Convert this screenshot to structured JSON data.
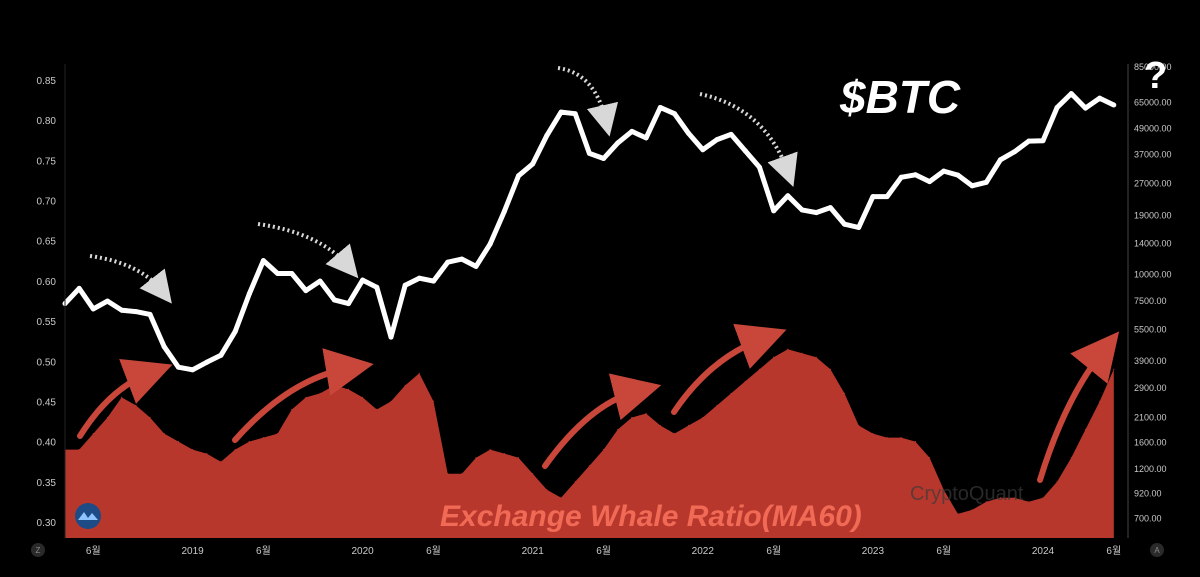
{
  "chart_data": {
    "type": "area",
    "series_btc_label": "$BTC",
    "metric_label": "Exchange Whale Ratio(MA60)",
    "question_mark": "?",
    "watermark": "CryptoQuant",
    "corner_left": "Z",
    "corner_right": "A",
    "left_axis": {
      "ticks": [
        "0.85",
        "0.80",
        "0.75",
        "0.70",
        "0.65",
        "0.60",
        "0.55",
        "0.50",
        "0.45",
        "0.40",
        "0.35",
        "0.30"
      ],
      "ylim": [
        0.28,
        0.87
      ]
    },
    "right_axis": {
      "scale": "log",
      "ticks": [
        "65000.00",
        "49000.00",
        "37000.00",
        "27000.00",
        "19000.00",
        "14000.00",
        "10000.00",
        "7500.00",
        "5500.00",
        "3900.00",
        "2900.00",
        "2100.00",
        "1600.00",
        "1200.00",
        "920.00",
        "700.00"
      ],
      "top_tick_partial": "85000.00"
    },
    "x_axis": {
      "range": [
        "2018-04",
        "2024-07"
      ],
      "ticks": [
        {
          "date": "2018-06",
          "label": "6월"
        },
        {
          "date": "2019-01",
          "label": "2019"
        },
        {
          "date": "2019-06",
          "label": "6월"
        },
        {
          "date": "2020-01",
          "label": "2020"
        },
        {
          "date": "2020-06",
          "label": "6월"
        },
        {
          "date": "2021-01",
          "label": "2021"
        },
        {
          "date": "2021-06",
          "label": "6월"
        },
        {
          "date": "2022-01",
          "label": "2022"
        },
        {
          "date": "2022-06",
          "label": "6월"
        },
        {
          "date": "2023-01",
          "label": "2023"
        },
        {
          "date": "2023-06",
          "label": "6월"
        },
        {
          "date": "2024-01",
          "label": "2024"
        },
        {
          "date": "2024-06",
          "label": "6월"
        }
      ]
    },
    "btc_price": [
      {
        "date": "2018-04",
        "v": 7200
      },
      {
        "date": "2018-05",
        "v": 8500
      },
      {
        "date": "2018-06",
        "v": 6800
      },
      {
        "date": "2018-07",
        "v": 7400
      },
      {
        "date": "2018-08",
        "v": 6700
      },
      {
        "date": "2018-09",
        "v": 6600
      },
      {
        "date": "2018-10",
        "v": 6400
      },
      {
        "date": "2018-11",
        "v": 4500
      },
      {
        "date": "2018-12",
        "v": 3600
      },
      {
        "date": "2019-01",
        "v": 3500
      },
      {
        "date": "2019-02",
        "v": 3800
      },
      {
        "date": "2019-03",
        "v": 4100
      },
      {
        "date": "2019-04",
        "v": 5300
      },
      {
        "date": "2019-05",
        "v": 8000
      },
      {
        "date": "2019-06",
        "v": 11500
      },
      {
        "date": "2019-07",
        "v": 10000
      },
      {
        "date": "2019-08",
        "v": 10000
      },
      {
        "date": "2019-09",
        "v": 8300
      },
      {
        "date": "2019-10",
        "v": 9200
      },
      {
        "date": "2019-11",
        "v": 7500
      },
      {
        "date": "2019-12",
        "v": 7200
      },
      {
        "date": "2020-01",
        "v": 9300
      },
      {
        "date": "2020-02",
        "v": 8600
      },
      {
        "date": "2020-03",
        "v": 5000
      },
      {
        "date": "2020-04",
        "v": 8800
      },
      {
        "date": "2020-05",
        "v": 9500
      },
      {
        "date": "2020-06",
        "v": 9200
      },
      {
        "date": "2020-07",
        "v": 11300
      },
      {
        "date": "2020-08",
        "v": 11700
      },
      {
        "date": "2020-09",
        "v": 10800
      },
      {
        "date": "2020-10",
        "v": 13800
      },
      {
        "date": "2020-11",
        "v": 19700
      },
      {
        "date": "2020-12",
        "v": 29000
      },
      {
        "date": "2021-01",
        "v": 33000
      },
      {
        "date": "2021-02",
        "v": 45000
      },
      {
        "date": "2021-03",
        "v": 58000
      },
      {
        "date": "2021-04",
        "v": 57000
      },
      {
        "date": "2021-05",
        "v": 37000
      },
      {
        "date": "2021-06",
        "v": 35000
      },
      {
        "date": "2021-07",
        "v": 41500
      },
      {
        "date": "2021-08",
        "v": 47000
      },
      {
        "date": "2021-09",
        "v": 43800
      },
      {
        "date": "2021-10",
        "v": 61000
      },
      {
        "date": "2021-11",
        "v": 57000
      },
      {
        "date": "2021-12",
        "v": 46000
      },
      {
        "date": "2022-01",
        "v": 38500
      },
      {
        "date": "2022-02",
        "v": 43000
      },
      {
        "date": "2022-03",
        "v": 45500
      },
      {
        "date": "2022-04",
        "v": 38000
      },
      {
        "date": "2022-05",
        "v": 31800
      },
      {
        "date": "2022-06",
        "v": 19800
      },
      {
        "date": "2022-07",
        "v": 23300
      },
      {
        "date": "2022-08",
        "v": 20000
      },
      {
        "date": "2022-09",
        "v": 19400
      },
      {
        "date": "2022-10",
        "v": 20500
      },
      {
        "date": "2022-11",
        "v": 17100
      },
      {
        "date": "2022-12",
        "v": 16500
      },
      {
        "date": "2023-01",
        "v": 23100
      },
      {
        "date": "2023-02",
        "v": 23100
      },
      {
        "date": "2023-03",
        "v": 28500
      },
      {
        "date": "2023-04",
        "v": 29300
      },
      {
        "date": "2023-05",
        "v": 27200
      },
      {
        "date": "2023-06",
        "v": 30500
      },
      {
        "date": "2023-07",
        "v": 29200
      },
      {
        "date": "2023-08",
        "v": 26000
      },
      {
        "date": "2023-09",
        "v": 27000
      },
      {
        "date": "2023-10",
        "v": 34500
      },
      {
        "date": "2023-11",
        "v": 37700
      },
      {
        "date": "2023-12",
        "v": 42300
      },
      {
        "date": "2024-01",
        "v": 42500
      },
      {
        "date": "2024-02",
        "v": 61000
      },
      {
        "date": "2024-03",
        "v": 71000
      },
      {
        "date": "2024-04",
        "v": 60600
      },
      {
        "date": "2024-05",
        "v": 67500
      },
      {
        "date": "2024-06",
        "v": 62700
      }
    ],
    "whale_ratio": [
      {
        "date": "2018-04",
        "v": 0.39
      },
      {
        "date": "2018-05",
        "v": 0.39
      },
      {
        "date": "2018-06",
        "v": 0.41
      },
      {
        "date": "2018-07",
        "v": 0.43
      },
      {
        "date": "2018-08",
        "v": 0.455
      },
      {
        "date": "2018-09",
        "v": 0.445
      },
      {
        "date": "2018-10",
        "v": 0.43
      },
      {
        "date": "2018-11",
        "v": 0.41
      },
      {
        "date": "2018-12",
        "v": 0.4
      },
      {
        "date": "2019-01",
        "v": 0.39
      },
      {
        "date": "2019-02",
        "v": 0.385
      },
      {
        "date": "2019-03",
        "v": 0.375
      },
      {
        "date": "2019-04",
        "v": 0.39
      },
      {
        "date": "2019-05",
        "v": 0.4
      },
      {
        "date": "2019-06",
        "v": 0.405
      },
      {
        "date": "2019-07",
        "v": 0.41
      },
      {
        "date": "2019-08",
        "v": 0.44
      },
      {
        "date": "2019-09",
        "v": 0.455
      },
      {
        "date": "2019-10",
        "v": 0.46
      },
      {
        "date": "2019-11",
        "v": 0.47
      },
      {
        "date": "2019-12",
        "v": 0.465
      },
      {
        "date": "2020-01",
        "v": 0.455
      },
      {
        "date": "2020-02",
        "v": 0.44
      },
      {
        "date": "2020-03",
        "v": 0.45
      },
      {
        "date": "2020-04",
        "v": 0.47
      },
      {
        "date": "2020-05",
        "v": 0.485
      },
      {
        "date": "2020-06",
        "v": 0.45
      },
      {
        "date": "2020-07",
        "v": 0.36
      },
      {
        "date": "2020-08",
        "v": 0.36
      },
      {
        "date": "2020-09",
        "v": 0.38
      },
      {
        "date": "2020-10",
        "v": 0.39
      },
      {
        "date": "2020-11",
        "v": 0.385
      },
      {
        "date": "2020-12",
        "v": 0.38
      },
      {
        "date": "2021-01",
        "v": 0.36
      },
      {
        "date": "2021-02",
        "v": 0.34
      },
      {
        "date": "2021-03",
        "v": 0.33
      },
      {
        "date": "2021-04",
        "v": 0.35
      },
      {
        "date": "2021-05",
        "v": 0.37
      },
      {
        "date": "2021-06",
        "v": 0.39
      },
      {
        "date": "2021-07",
        "v": 0.415
      },
      {
        "date": "2021-08",
        "v": 0.43
      },
      {
        "date": "2021-09",
        "v": 0.435
      },
      {
        "date": "2021-10",
        "v": 0.42
      },
      {
        "date": "2021-11",
        "v": 0.41
      },
      {
        "date": "2021-12",
        "v": 0.42
      },
      {
        "date": "2022-01",
        "v": 0.43
      },
      {
        "date": "2022-02",
        "v": 0.445
      },
      {
        "date": "2022-03",
        "v": 0.46
      },
      {
        "date": "2022-04",
        "v": 0.475
      },
      {
        "date": "2022-05",
        "v": 0.49
      },
      {
        "date": "2022-06",
        "v": 0.505
      },
      {
        "date": "2022-07",
        "v": 0.515
      },
      {
        "date": "2022-08",
        "v": 0.51
      },
      {
        "date": "2022-09",
        "v": 0.505
      },
      {
        "date": "2022-10",
        "v": 0.49
      },
      {
        "date": "2022-11",
        "v": 0.46
      },
      {
        "date": "2022-12",
        "v": 0.42
      },
      {
        "date": "2023-01",
        "v": 0.41
      },
      {
        "date": "2023-02",
        "v": 0.405
      },
      {
        "date": "2023-03",
        "v": 0.405
      },
      {
        "date": "2023-04",
        "v": 0.4
      },
      {
        "date": "2023-05",
        "v": 0.38
      },
      {
        "date": "2023-06",
        "v": 0.34
      },
      {
        "date": "2023-07",
        "v": 0.31
      },
      {
        "date": "2023-08",
        "v": 0.315
      },
      {
        "date": "2023-09",
        "v": 0.325
      },
      {
        "date": "2023-10",
        "v": 0.33
      },
      {
        "date": "2023-11",
        "v": 0.33
      },
      {
        "date": "2023-12",
        "v": 0.325
      },
      {
        "date": "2024-01",
        "v": 0.33
      },
      {
        "date": "2024-02",
        "v": 0.35
      },
      {
        "date": "2024-03",
        "v": 0.38
      },
      {
        "date": "2024-04",
        "v": 0.415
      },
      {
        "date": "2024-05",
        "v": 0.45
      },
      {
        "date": "2024-06",
        "v": 0.49
      }
    ],
    "colors": {
      "btc_line": "#ffffff",
      "whale_fill": "#b8372c",
      "annotation_arrow": "#c8473a",
      "metric_label": "#f06a55",
      "axis_text": "#c9c9c9",
      "background": "#000000"
    }
  }
}
